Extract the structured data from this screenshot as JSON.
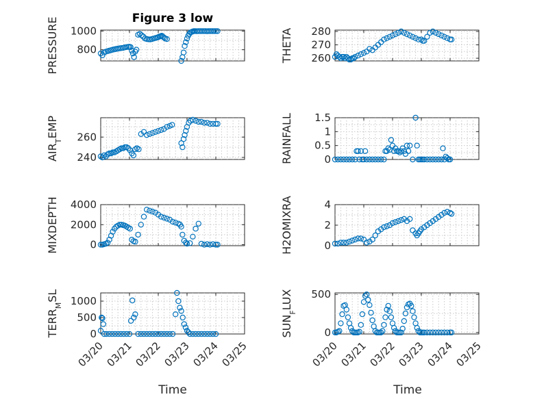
{
  "figure": {
    "title": "Figure 3 low",
    "marker_color": "#0072BD",
    "x_tick_labels": [
      "03/20",
      "03/21",
      "03/22",
      "03/23",
      "03/24",
      "03/25"
    ],
    "x_label": "Time"
  },
  "chart_data": [
    {
      "type": "scatter",
      "ylabel": "PRESSURE",
      "ylim": [
        680,
        1010
      ],
      "yticks": [
        800,
        1000
      ],
      "series": [
        {
          "name": "PRESSURE",
          "x": [
            0.0,
            0.06,
            0.12,
            0.18,
            0.24,
            0.3,
            0.36,
            0.42,
            0.48,
            0.54,
            0.6,
            0.66,
            0.72,
            0.78,
            0.84,
            0.9,
            0.96,
            1.0,
            1.04,
            1.08,
            1.12,
            1.16,
            1.2,
            1.24,
            1.3,
            1.36,
            1.42,
            1.48,
            1.54,
            1.6,
            1.66,
            1.72,
            1.78,
            1.84,
            1.9,
            1.96,
            2.0,
            2.04,
            2.08,
            2.12,
            2.16,
            2.2,
            2.24,
            2.3,
            2.8,
            2.84,
            2.88,
            2.92,
            2.96,
            3.0,
            3.04,
            3.08,
            3.12,
            3.16,
            3.2,
            3.24,
            3.28,
            3.34,
            3.4,
            3.46,
            3.52,
            3.58,
            3.64,
            3.7,
            3.76,
            3.82,
            3.88,
            3.94,
            4.0,
            4.06
          ],
          "y": [
            760,
            740,
            770,
            780,
            785,
            790,
            795,
            800,
            805,
            808,
            812,
            815,
            818,
            820,
            825,
            828,
            830,
            832,
            828,
            790,
            760,
            720,
            780,
            800,
            960,
            970,
            955,
            940,
            920,
            915,
            912,
            910,
            915,
            920,
            925,
            930,
            935,
            940,
            945,
            950,
            940,
            930,
            920,
            915,
            680,
            720,
            770,
            840,
            880,
            920,
            950,
            970,
            985,
            990,
            995,
            1000,
            1000,
            998,
            1000,
            1000,
            1000,
            1000,
            1000,
            998,
            1000,
            1000,
            1000,
            1000,
            1000,
            1000
          ]
        }
      ]
    },
    {
      "type": "scatter",
      "ylabel": "THETA",
      "ylim": [
        258,
        281
      ],
      "yticks": [
        260,
        270,
        280
      ],
      "series": [
        {
          "name": "THETA",
          "x": [
            0.0,
            0.05,
            0.1,
            0.15,
            0.2,
            0.25,
            0.3,
            0.35,
            0.4,
            0.45,
            0.5,
            0.55,
            0.6,
            0.65,
            0.7,
            0.8,
            0.9,
            1.0,
            1.1,
            1.2,
            1.3,
            1.4,
            1.5,
            1.6,
            1.7,
            1.8,
            1.9,
            2.0,
            2.1,
            2.2,
            2.3,
            2.4,
            2.5,
            2.6,
            2.7,
            2.8,
            2.9,
            3.0,
            3.05,
            3.1,
            3.2,
            3.3,
            3.4,
            3.5,
            3.6,
            3.7,
            3.8,
            3.9,
            4.0,
            4.05
          ],
          "y": [
            261,
            263,
            262,
            261,
            260,
            261,
            261,
            260,
            261,
            260,
            259,
            259,
            260,
            260,
            261,
            262,
            263,
            264,
            265,
            267,
            266,
            268,
            270,
            272,
            274,
            275,
            276,
            277,
            278,
            279,
            280,
            279,
            278,
            277,
            276,
            275,
            274,
            274,
            273,
            273,
            276,
            279,
            280,
            279,
            278,
            277,
            276,
            275,
            274,
            274
          ]
        }
      ]
    },
    {
      "type": "scatter",
      "ylabel": "AIR_TEMP",
      "ylim": [
        238,
        279
      ],
      "yticks": [
        240,
        260
      ],
      "series": [
        {
          "name": "AIR_TEMP",
          "x": [
            0.0,
            0.06,
            0.12,
            0.18,
            0.24,
            0.3,
            0.36,
            0.42,
            0.48,
            0.54,
            0.6,
            0.66,
            0.72,
            0.78,
            0.84,
            0.9,
            0.96,
            1.02,
            1.08,
            1.14,
            1.2,
            1.26,
            1.32,
            1.4,
            1.5,
            1.6,
            1.7,
            1.8,
            1.9,
            2.0,
            2.1,
            2.2,
            2.3,
            2.4,
            2.48,
            2.8,
            2.84,
            2.88,
            2.92,
            2.96,
            3.0,
            3.06,
            3.12,
            3.2,
            3.3,
            3.4,
            3.5,
            3.6,
            3.7,
            3.8,
            3.9,
            4.0,
            4.06
          ],
          "y": [
            241,
            240,
            242,
            241,
            243,
            244,
            244,
            245,
            245,
            246,
            247,
            248,
            249,
            249,
            250,
            250,
            249,
            247,
            244,
            242,
            248,
            249,
            248,
            263,
            265,
            262,
            263,
            264,
            265,
            266,
            267,
            268,
            270,
            271,
            272,
            254,
            250,
            258,
            262,
            266,
            270,
            274,
            276,
            277,
            276,
            275,
            275,
            274,
            274,
            273,
            273,
            273,
            273
          ]
        }
      ]
    },
    {
      "type": "scatter",
      "ylabel": "RAINFALL",
      "ylim": [
        0,
        1.5
      ],
      "yticks": [
        0,
        0.5,
        1,
        1.5
      ],
      "ytick_labels": [
        "0",
        "0.5",
        "1",
        "1.5"
      ],
      "series": [
        {
          "name": "RAINFALL",
          "x": [
            0.0,
            0.1,
            0.2,
            0.3,
            0.4,
            0.5,
            0.6,
            0.7,
            0.75,
            0.8,
            0.85,
            0.9,
            0.95,
            1.0,
            1.05,
            1.1,
            1.2,
            1.3,
            1.4,
            1.5,
            1.6,
            1.7,
            1.75,
            1.8,
            1.85,
            1.9,
            1.95,
            2.0,
            2.05,
            2.1,
            2.15,
            2.2,
            2.25,
            2.3,
            2.35,
            2.4,
            2.45,
            2.5,
            2.55,
            2.6,
            2.7,
            2.8,
            2.85,
            2.9,
            2.95,
            3.0,
            3.05,
            3.1,
            3.2,
            3.3,
            3.4,
            3.5,
            3.6,
            3.7,
            3.75,
            3.8,
            3.85,
            3.9,
            3.95,
            4.0
          ],
          "y": [
            0,
            0,
            0,
            0,
            0,
            0,
            0,
            0,
            0.3,
            0.3,
            0,
            0.3,
            0,
            0,
            0.3,
            0,
            0,
            0,
            0,
            0,
            0,
            0,
            0.3,
            0.3,
            0.4,
            0.35,
            0.7,
            0.5,
            0.3,
            0.4,
            0.3,
            0.3,
            0.25,
            0.3,
            0.4,
            0.3,
            0.2,
            0.5,
            0.3,
            0.5,
            0,
            1.5,
            0.5,
            0,
            0,
            0,
            0,
            0,
            0,
            0,
            0,
            0,
            0,
            0,
            0.4,
            0,
            0.1,
            0.05,
            0,
            0
          ]
        }
      ]
    },
    {
      "type": "scatter",
      "ylabel": "MIXDEPTH",
      "ylim": [
        -100,
        4000
      ],
      "yticks": [
        0,
        2000,
        4000
      ],
      "series": [
        {
          "name": "MIXDEPTH",
          "x": [
            0.0,
            0.06,
            0.12,
            0.18,
            0.24,
            0.3,
            0.36,
            0.42,
            0.48,
            0.54,
            0.6,
            0.66,
            0.72,
            0.78,
            0.84,
            0.9,
            0.96,
            1.02,
            1.08,
            1.14,
            1.2,
            1.3,
            1.4,
            1.5,
            1.6,
            1.7,
            1.8,
            1.9,
            2.0,
            2.1,
            2.2,
            2.3,
            2.4,
            2.5,
            2.6,
            2.7,
            2.76,
            2.8,
            2.84,
            2.9,
            2.96,
            3.0,
            3.1,
            3.2,
            3.3,
            3.4,
            3.5,
            3.6,
            3.7,
            3.8,
            3.9,
            4.0,
            4.06
          ],
          "y": [
            0,
            0,
            50,
            100,
            200,
            500,
            900,
            1300,
            1600,
            1800,
            1900,
            2000,
            2000,
            1950,
            1900,
            1800,
            1700,
            1600,
            500,
            350,
            300,
            1000,
            2000,
            2800,
            3500,
            3400,
            3300,
            3200,
            3000,
            2800,
            2700,
            2600,
            2500,
            2300,
            2200,
            2100,
            2000,
            1800,
            1000,
            400,
            200,
            100,
            150,
            800,
            1600,
            2100,
            100,
            0,
            50,
            0,
            50,
            0,
            0
          ]
        }
      ]
    },
    {
      "type": "scatter",
      "ylabel": "H2OMIXRA",
      "ylim": [
        0,
        4
      ],
      "yticks": [
        0,
        2,
        4
      ],
      "series": [
        {
          "name": "H2OMIXRA",
          "x": [
            0.0,
            0.1,
            0.2,
            0.3,
            0.4,
            0.5,
            0.6,
            0.7,
            0.8,
            0.9,
            1.0,
            1.1,
            1.2,
            1.3,
            1.4,
            1.5,
            1.6,
            1.7,
            1.8,
            1.9,
            2.0,
            2.1,
            2.2,
            2.3,
            2.4,
            2.5,
            2.6,
            2.7,
            2.8,
            2.85,
            2.9,
            2.95,
            3.0,
            3.1,
            3.2,
            3.3,
            3.4,
            3.5,
            3.6,
            3.7,
            3.8,
            3.9,
            4.0,
            4.05
          ],
          "y": [
            0.2,
            0.2,
            0.3,
            0.3,
            0.3,
            0.4,
            0.5,
            0.6,
            0.7,
            0.7,
            0.6,
            0.3,
            0.4,
            0.6,
            1.0,
            1.4,
            1.6,
            1.8,
            1.9,
            2.0,
            2.2,
            2.3,
            2.4,
            2.5,
            2.6,
            2.4,
            2.6,
            1.5,
            1.2,
            1.0,
            1.2,
            1.4,
            1.6,
            1.8,
            2.0,
            2.2,
            2.4,
            2.6,
            2.8,
            3.0,
            3.2,
            3.3,
            3.2,
            3.1
          ]
        }
      ]
    },
    {
      "type": "scatter",
      "ylabel": "TERR_MSL",
      "ylim": [
        0,
        1250
      ],
      "yticks": [
        0,
        500,
        1000
      ],
      "series": [
        {
          "name": "TERR_MSL",
          "x": [
            0.0,
            0.03,
            0.06,
            0.09,
            0.12,
            0.2,
            0.3,
            0.4,
            0.5,
            0.6,
            0.7,
            0.8,
            0.9,
            1.0,
            1.05,
            1.1,
            1.15,
            1.2,
            1.3,
            1.4,
            1.5,
            1.6,
            1.7,
            1.8,
            1.9,
            2.0,
            2.1,
            2.2,
            2.3,
            2.4,
            2.5,
            2.6,
            2.65,
            2.7,
            2.75,
            2.8,
            2.85,
            2.9,
            2.95,
            3.0,
            3.05,
            3.1,
            3.2,
            3.3,
            3.4,
            3.5,
            3.6,
            3.7,
            3.8,
            3.9,
            4.0
          ],
          "y": [
            100,
            500,
            480,
            300,
            0,
            0,
            0,
            0,
            0,
            0,
            0,
            0,
            0,
            0,
            400,
            1020,
            500,
            600,
            0,
            0,
            0,
            0,
            0,
            0,
            0,
            0,
            0,
            0,
            0,
            0,
            0,
            600,
            1250,
            1000,
            800,
            700,
            500,
            300,
            200,
            100,
            50,
            0,
            0,
            0,
            0,
            0,
            0,
            0,
            0,
            0,
            0
          ]
        }
      ]
    },
    {
      "type": "scatter",
      "ylabel": "SUN_FLUX",
      "ylim": [
        -20,
        520
      ],
      "yticks": [
        0,
        500
      ],
      "series": [
        {
          "name": "SUN_FLUX",
          "x": [
            0.0,
            0.05,
            0.1,
            0.15,
            0.2,
            0.25,
            0.3,
            0.35,
            0.4,
            0.45,
            0.5,
            0.55,
            0.6,
            0.65,
            0.7,
            0.75,
            0.8,
            0.85,
            0.9,
            0.95,
            1.0,
            1.05,
            1.1,
            1.15,
            1.2,
            1.25,
            1.3,
            1.35,
            1.4,
            1.45,
            1.5,
            1.55,
            1.6,
            1.65,
            1.7,
            1.75,
            1.8,
            1.85,
            1.9,
            1.95,
            2.0,
            2.05,
            2.1,
            2.15,
            2.2,
            2.25,
            2.3,
            2.35,
            2.4,
            2.45,
            2.5,
            2.55,
            2.6,
            2.65,
            2.7,
            2.75,
            2.8,
            2.85,
            2.9,
            2.95,
            3.0,
            3.05,
            3.1,
            3.2,
            3.3,
            3.4,
            3.5,
            3.6,
            3.7,
            3.8,
            3.9,
            4.0,
            4.05
          ],
          "y": [
            0,
            0,
            10,
            20,
            120,
            240,
            350,
            360,
            300,
            200,
            120,
            60,
            20,
            0,
            0,
            0,
            0,
            10,
            100,
            240,
            400,
            480,
            500,
            430,
            360,
            260,
            160,
            80,
            20,
            0,
            0,
            0,
            0,
            20,
            100,
            200,
            300,
            350,
            280,
            200,
            120,
            60,
            20,
            0,
            0,
            0,
            0,
            50,
            150,
            250,
            330,
            370,
            380,
            350,
            280,
            200,
            120,
            60,
            20,
            0,
            0,
            0,
            0,
            0,
            0,
            0,
            0,
            0,
            0,
            0,
            0,
            0,
            0
          ]
        }
      ]
    }
  ]
}
